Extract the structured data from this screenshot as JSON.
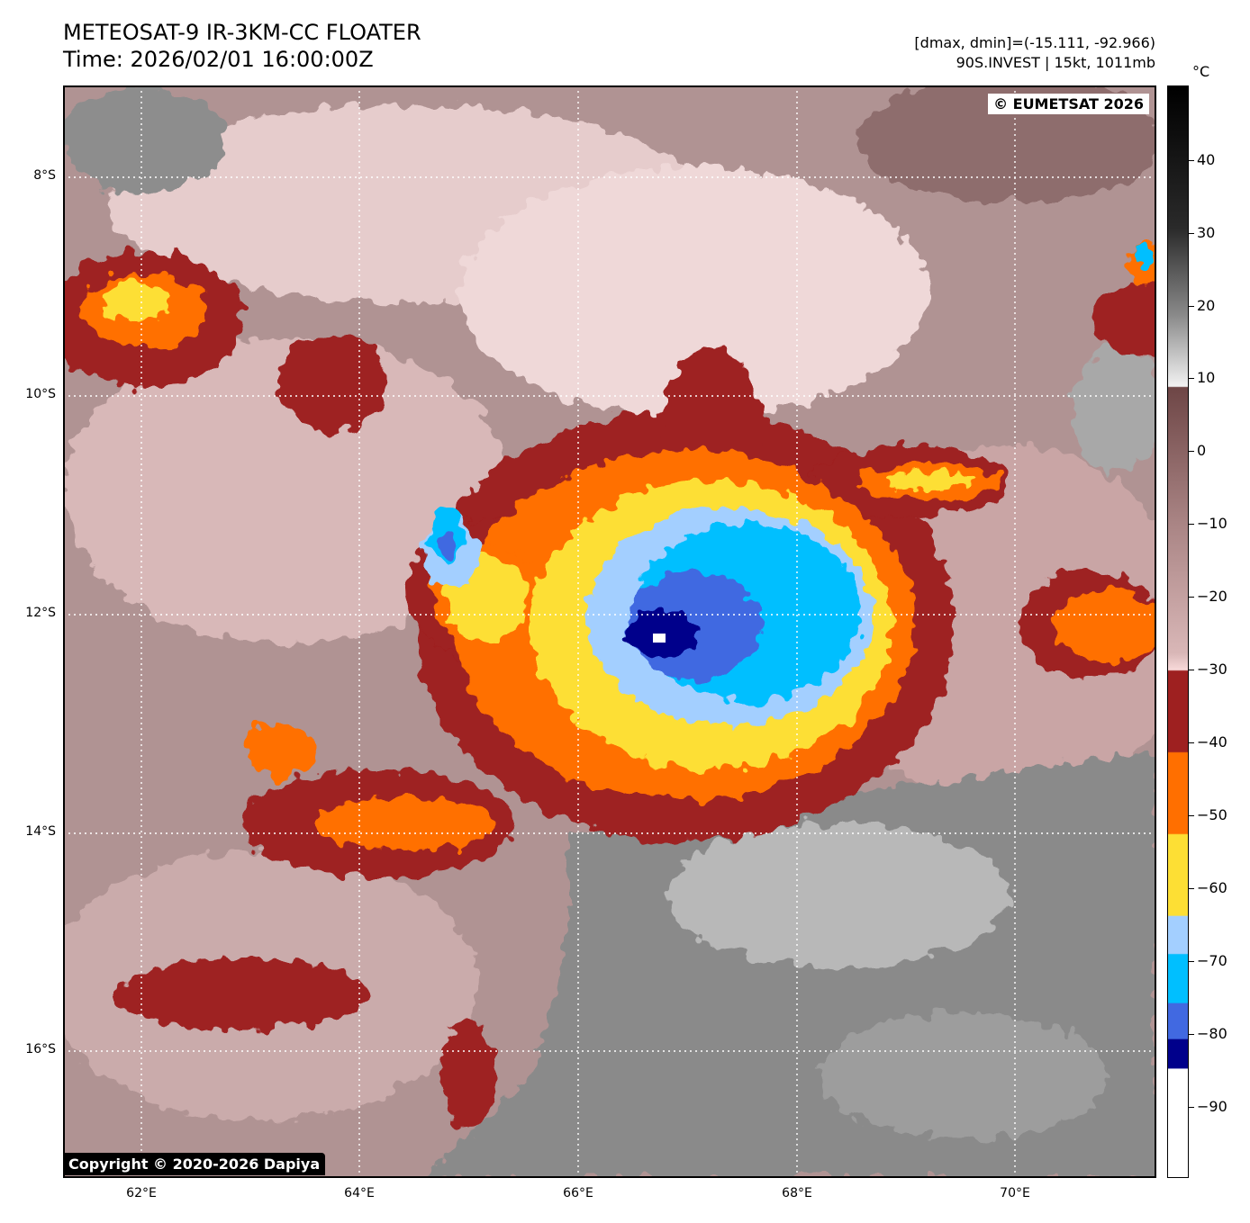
{
  "header": {
    "title_line1": "METEOSAT-9 IR-3KM-CC FLOATER",
    "title_line2": "Time: 2026/02/01 16:00:00Z",
    "range_line": "[dmax, dmin]=(-15.111, -92.966)",
    "storm_line": "90S.INVEST | 15kt, 1011mb"
  },
  "map": {
    "lat_labels": [
      "8°S",
      "10°S",
      "12°S",
      "14°S",
      "16°S"
    ],
    "lon_labels": [
      "62°E",
      "64°E",
      "66°E",
      "68°E",
      "70°E"
    ],
    "copyright_top": "© EUMETSAT 2026",
    "copyright_bottom": "Copyright © 2020-2026 Dapiya"
  },
  "colorbar": {
    "unit": "°C",
    "labels": [
      "40",
      "30",
      "20",
      "10",
      "0",
      "−10",
      "−20",
      "−30",
      "−40",
      "−50",
      "−60",
      "−70",
      "−80",
      "−90"
    ],
    "colors": {
      "black": "#000000",
      "gray_light": "#f2f2f2",
      "brown_warm": "#6e4646",
      "pink_pale": "#f8dada",
      "red_brown": "#9e2020",
      "orange": "#ff6f00",
      "yellow": "#fddf34",
      "light_blue": "#a3cfff",
      "cyan_blue": "#00bfff",
      "royal_blue": "#4169e1",
      "navy": "#00008b",
      "white": "#ffffff"
    }
  }
}
